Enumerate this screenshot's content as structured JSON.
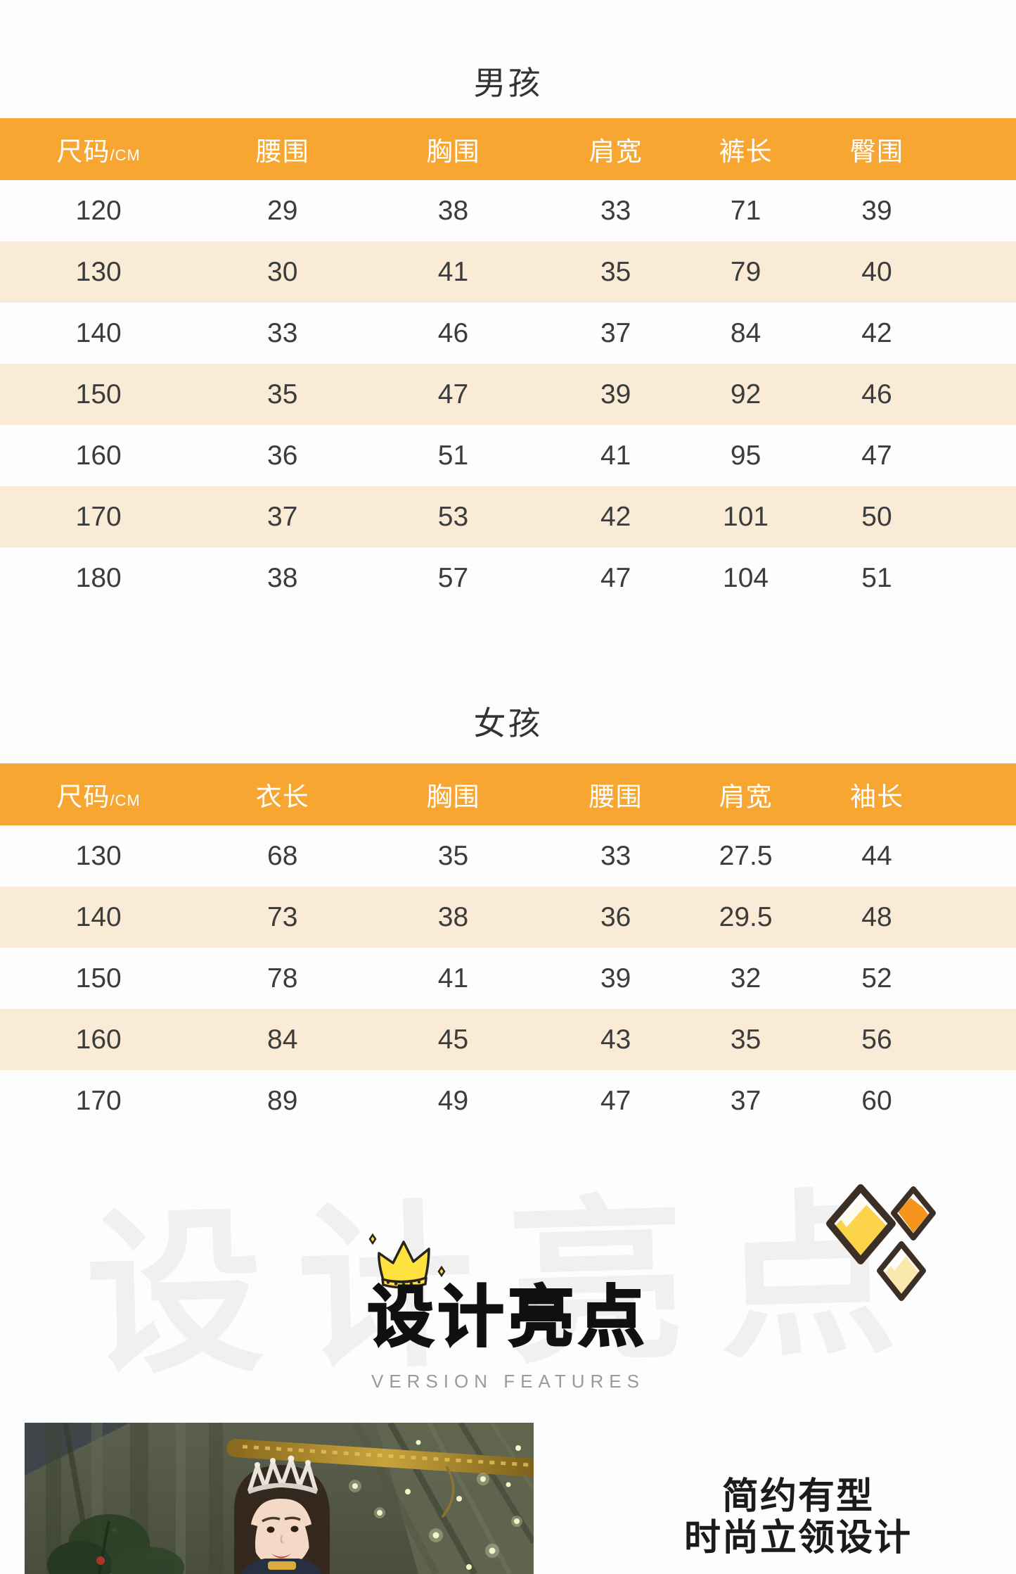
{
  "theme": {
    "header_orange": "#F7A631",
    "row_cream": "#F9EBD5",
    "crown_yellow": "#FFE23E",
    "diamond_yellow": "#FBD44C",
    "diamond_orange": "#F6951D",
    "diamond_pale_yellow": "#FBE8AC"
  },
  "boys_section": {
    "title": "男孩",
    "table": {
      "size_header": "尺码",
      "size_unit": "/CM",
      "columns": [
        "腰围",
        "胸围",
        "肩宽",
        "裤长",
        "臀围"
      ],
      "rows": [
        [
          "120",
          "29",
          "38",
          "33",
          "71",
          "39"
        ],
        [
          "130",
          "30",
          "41",
          "35",
          "79",
          "40"
        ],
        [
          "140",
          "33",
          "46",
          "37",
          "84",
          "42"
        ],
        [
          "150",
          "35",
          "47",
          "39",
          "92",
          "46"
        ],
        [
          "160",
          "36",
          "51",
          "41",
          "95",
          "47"
        ],
        [
          "170",
          "37",
          "53",
          "42",
          "101",
          "50"
        ],
        [
          "180",
          "38",
          "57",
          "47",
          "104",
          "51"
        ]
      ]
    }
  },
  "girls_section": {
    "title": "女孩",
    "table": {
      "size_header": "尺码",
      "size_unit": "/CM",
      "columns": [
        "衣长",
        "胸围",
        "腰围",
        "肩宽",
        "袖长"
      ],
      "rows": [
        [
          "130",
          "68",
          "35",
          "33",
          "27.5",
          "44"
        ],
        [
          "140",
          "73",
          "38",
          "36",
          "29.5",
          "48"
        ],
        [
          "150",
          "78",
          "41",
          "39",
          "32",
          "52"
        ],
        [
          "160",
          "84",
          "45",
          "43",
          "35",
          "56"
        ],
        [
          "170",
          "89",
          "49",
          "47",
          "37",
          "60"
        ]
      ]
    }
  },
  "features_section": {
    "watermark": "设计亮点",
    "title": "设计亮点",
    "subtitle": "VERSION FEATURES",
    "crown_icon": "crown-icon",
    "diamonds_icon": "diamond-cluster-icon"
  },
  "bottom_section": {
    "caption_line1": "简约有型",
    "caption_line2": "时尚立领设计"
  }
}
